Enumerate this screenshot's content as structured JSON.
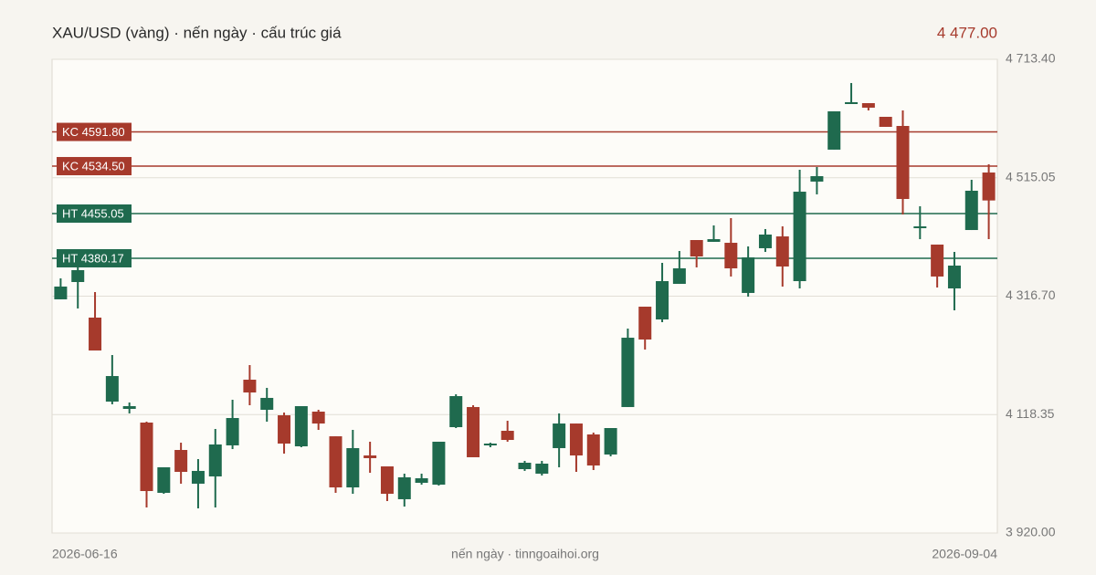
{
  "chart_data": {
    "type": "candlestick",
    "title": "XAU/USD (vàng) · nến ngày · cấu trúc giá",
    "last_price": {
      "value": 4477.0,
      "label": "4 477.00"
    },
    "source": "nến ngày · tinngoaihoi.org",
    "categories": [
      "2026-06-16",
      null,
      null,
      null,
      null,
      null,
      null,
      null,
      null,
      null,
      null,
      null,
      null,
      null,
      null,
      null,
      null,
      null,
      null,
      null,
      null,
      null,
      null,
      null,
      null,
      null,
      null,
      null,
      null,
      null,
      null,
      null,
      null,
      null,
      null,
      null,
      null,
      null,
      null,
      null,
      null,
      null,
      null,
      null,
      null,
      null,
      null,
      null,
      null,
      null,
      null,
      null,
      null,
      null,
      "2026-09-04"
    ],
    "open": [
      4311.4,
      4340.4,
      4280.8,
      4140.1,
      4127.9,
      4105.0,
      3987.3,
      4059.1,
      4002.6,
      4014.8,
      4066.8,
      4176.8,
      4126.4,
      4117.2,
      4065.2,
      4123.3,
      4082.0,
      3996.4,
      4049.9,
      4031.6,
      3976.6,
      4004.1,
      4001.0,
      4097.3,
      4131.0,
      4066.8,
      4091.2,
      4027.0,
      4019.4,
      4062.2,
      4103.4,
      4085.1,
      4051.5,
      4131.0,
      4299.1,
      4277.7,
      4337.3,
      4410.7,
      4407.7,
      4406.1,
      4322.1,
      4397.0,
      4416.8,
      4341.9,
      4508.6,
      4562.1,
      4638.5,
      4640.0,
      4617.1,
      4601.8,
      4430.6,
      4403.1,
      4329.7,
      4427.5,
      4523.8
    ],
    "high": [
      4346.5,
      4369.4,
      4323.6,
      4218.1,
      4138.6,
      4106.5,
      4030.1,
      4071.3,
      4043.8,
      4094.3,
      4143.2,
      4201.3,
      4163.1,
      4121.8,
      4132.5,
      4126.4,
      4082.0,
      4092.7,
      4072.9,
      4031.6,
      4019.4,
      4019.4,
      4072.9,
      4152.4,
      4134.0,
      4071.3,
      4108.0,
      4040.8,
      4040.8,
      4120.3,
      4103.4,
      4088.2,
      4095.8,
      4262.4,
      4299.1,
      4372.5,
      4392.4,
      4410.7,
      4435.2,
      4447.4,
      4400.0,
      4429.1,
      4433.6,
      4528.4,
      4533.0,
      4626.3,
      4673.7,
      4640.0,
      4617.1,
      4627.8,
      4467.3,
      4403.1,
      4390.8,
      4511.6,
      4537.6
    ],
    "low": [
      4311.4,
      4296.1,
      4225.7,
      4135.6,
      4120.3,
      3962.8,
      3985.7,
      4002.6,
      3961.3,
      3962.8,
      4060.6,
      4134.0,
      4106.5,
      4053.0,
      4063.7,
      4092.7,
      3987.3,
      3985.7,
      4020.9,
      3973.5,
      3964.3,
      4001.0,
      3999.5,
      4095.8,
      4046.9,
      4063.7,
      4072.9,
      4024.0,
      4016.3,
      4030.1,
      4022.4,
      4025.5,
      4048.4,
      4131.0,
      4227.3,
      4273.1,
      4337.3,
      4364.9,
      4407.7,
      4349.6,
      4315.9,
      4390.8,
      4332.8,
      4329.7,
      4487.2,
      4562.1,
      4638.5,
      4627.8,
      4600.3,
      4453.5,
      4412.2,
      4331.2,
      4293.0,
      4427.5,
      4412.2
    ],
    "close": [
      4332.8,
      4360.3,
      4225.7,
      4182.9,
      4132.5,
      3990.3,
      4030.1,
      4022.4,
      4024.0,
      4068.3,
      4112.6,
      4155.4,
      4146.3,
      4069.8,
      4132.5,
      4103.4,
      3996.4,
      4062.2,
      4045.4,
      3985.7,
      4013.3,
      4011.7,
      4072.9,
      4149.3,
      4046.9,
      4069.8,
      4075.9,
      4037.7,
      4036.2,
      4103.4,
      4049.9,
      4033.1,
      4095.8,
      4247.1,
      4244.1,
      4341.9,
      4363.3,
      4383.2,
      4412.2,
      4363.3,
      4381.7,
      4419.9,
      4366.4,
      4491.7,
      4517.7,
      4626.3,
      4641.6,
      4632.4,
      4600.3,
      4479.5,
      4433.6,
      4349.6,
      4367.9,
      4493.3,
      4477.0
    ],
    "up_color": "#1f6a4e",
    "down_color": "#a63a2c",
    "levels": [
      {
        "label": "KC 4591.80",
        "value": 4591.8,
        "color": "#a63a2c"
      },
      {
        "label": "KC 4534.50",
        "value": 4534.5,
        "color": "#a63a2c"
      },
      {
        "label": "HT 4455.05",
        "value": 4455.05,
        "color": "#1f6a4e"
      },
      {
        "label": "HT 4380.17",
        "value": 4380.17,
        "color": "#1f6a4e"
      }
    ],
    "ylim": [
      3920.0,
      4713.4
    ],
    "yticks": [
      {
        "value": 3920.0,
        "label": "3 920.00"
      },
      {
        "value": 4118.35,
        "label": "4 118.35"
      },
      {
        "value": 4316.7,
        "label": "4 316.70"
      },
      {
        "value": 4515.05,
        "label": "4 515.05"
      },
      {
        "value": 4713.4,
        "label": "4 713.40"
      }
    ],
    "grid": true
  }
}
